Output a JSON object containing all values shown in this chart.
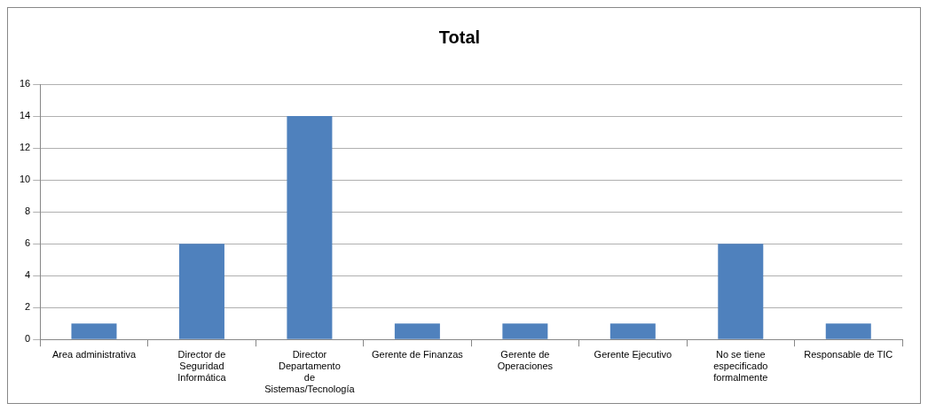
{
  "chart_data": {
    "type": "bar",
    "title": "Total",
    "categories": [
      "Area administrativa",
      "Director de Seguridad Informática",
      "Director Departamento de Sistemas/Tecnología",
      "Gerente de Finanzas",
      "Gerente de Operaciones",
      "Gerente Ejecutivo",
      "No se tiene especificado formalmente",
      "Responsable de TIC"
    ],
    "values": [
      1,
      6,
      14,
      1,
      1,
      1,
      6,
      1
    ],
    "color": "#4f81bd",
    "ylim": [
      0,
      16
    ],
    "yticks": [
      0,
      2,
      4,
      6,
      8,
      10,
      12,
      14,
      16
    ],
    "grid": "y",
    "legend": false
  }
}
